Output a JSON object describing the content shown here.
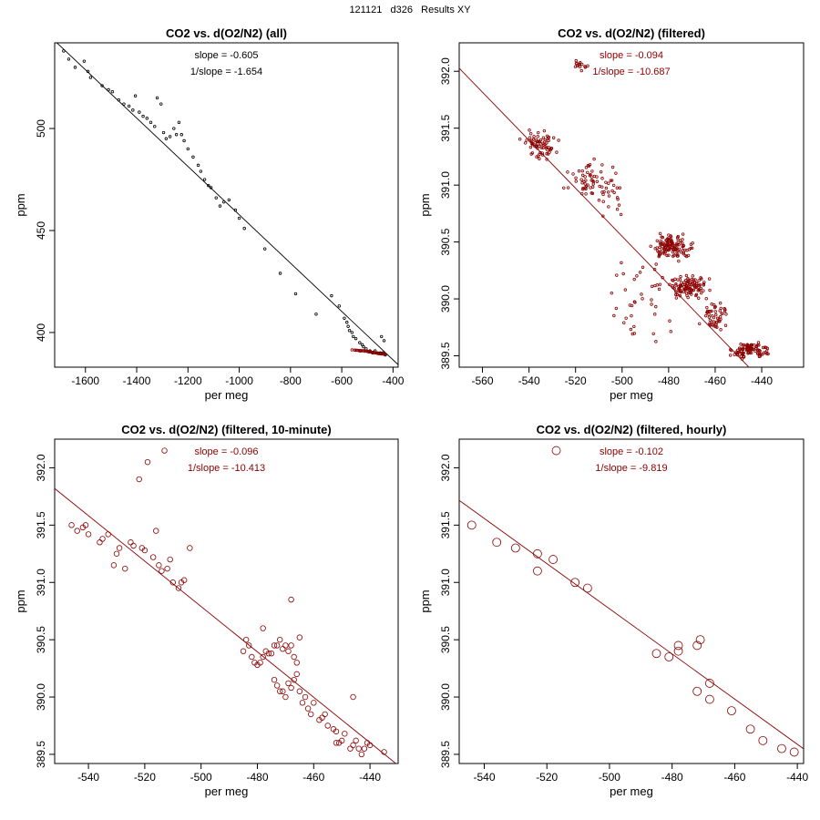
{
  "page_title": "121121   d326   Results XY",
  "colors": {
    "all_points": "#000000",
    "filtered": "#8b0000",
    "fit_all": "#000000",
    "fit_filtered": "#8b0000"
  },
  "chart_data": [
    {
      "type": "scatter",
      "title": "CO2 vs. d(O2/N2) (all)",
      "xlabel": "per meg",
      "ylabel": "ppm",
      "xlim": [
        -1720,
        -380
      ],
      "ylim": [
        383,
        542
      ],
      "xticks": [
        -1600,
        -1400,
        -1200,
        -1000,
        -800,
        -600,
        -400
      ],
      "xtick_labels": [
        "-1600",
        "-1400",
        "-1200",
        "-1000",
        "-800",
        "-600",
        "-400"
      ],
      "yticks": [
        400,
        450,
        500
      ],
      "ytick_labels": [
        "400",
        "450",
        "500"
      ],
      "annotations": [
        "slope = -0.605",
        "1/slope = -1.654"
      ],
      "annotation_color": "#000000",
      "fit_line": {
        "slope": -0.1185,
        "intercept": 339.2,
        "color": "#000000"
      },
      "series": [
        {
          "name": "all",
          "color": "#000000",
          "marker_r": 1.3,
          "points": [
            [
              -1685,
              538
            ],
            [
              -1665,
              534
            ],
            [
              -1640,
              530
            ],
            [
              -1605,
              533
            ],
            [
              -1590,
              528
            ],
            [
              -1580,
              525
            ],
            [
              -1535,
              521
            ],
            [
              -1510,
              519
            ],
            [
              -1495,
              518
            ],
            [
              -1470,
              514
            ],
            [
              -1450,
              512
            ],
            [
              -1430,
              511
            ],
            [
              -1415,
              509
            ],
            [
              -1405,
              516
            ],
            [
              -1390,
              508
            ],
            [
              -1375,
              506
            ],
            [
              -1360,
              505
            ],
            [
              -1345,
              503
            ],
            [
              -1330,
              501
            ],
            [
              -1320,
              515
            ],
            [
              -1305,
              512
            ],
            [
              -1295,
              498
            ],
            [
              -1285,
              495
            ],
            [
              -1270,
              496
            ],
            [
              -1255,
              500
            ],
            [
              -1245,
              497
            ],
            [
              -1235,
              503
            ],
            [
              -1225,
              497
            ],
            [
              -1215,
              494
            ],
            [
              -1200,
              490
            ],
            [
              -1180,
              486
            ],
            [
              -1160,
              482
            ],
            [
              -1150,
              479
            ],
            [
              -1135,
              475
            ],
            [
              -1120,
              472
            ],
            [
              -1110,
              471
            ],
            [
              -1090,
              466
            ],
            [
              -1075,
              462
            ],
            [
              -1060,
              464
            ],
            [
              -1040,
              465
            ],
            [
              -1015,
              460
            ],
            [
              -1000,
              456
            ],
            [
              -980,
              451
            ],
            [
              -900,
              441
            ],
            [
              -840,
              429
            ],
            [
              -780,
              419
            ],
            [
              -700,
              409
            ],
            [
              -640,
              418
            ],
            [
              -610,
              413
            ],
            [
              -590,
              407
            ],
            [
              -580,
              405
            ],
            [
              -575,
              403
            ],
            [
              -570,
              401
            ],
            [
              -560,
              400
            ],
            [
              -555,
              398
            ],
            [
              -545,
              397
            ],
            [
              -530,
              395
            ],
            [
              -520,
              394
            ],
            [
              -515,
              393
            ],
            [
              -505,
              392
            ],
            [
              -490,
              391
            ],
            [
              -480,
              390
            ],
            [
              -470,
              391
            ],
            [
              -460,
              390
            ],
            [
              -450,
              390
            ],
            [
              -440,
              390
            ],
            [
              -430,
              389
            ],
            [
              -445,
              398
            ],
            [
              -435,
              396
            ]
          ]
        },
        {
          "name": "filtered",
          "color": "#8b0000",
          "marker_r": 1.3,
          "points": [
            [
              -560,
              391.5
            ],
            [
              -550,
              391.4
            ],
            [
              -545,
              391.3
            ],
            [
              -540,
              391.3
            ],
            [
              -535,
              391.2
            ],
            [
              -530,
              391.1
            ],
            [
              -528,
              390.9
            ],
            [
              -525,
              391.2
            ],
            [
              -520,
              391.0
            ],
            [
              -515,
              391.1
            ],
            [
              -510,
              390.8
            ],
            [
              -505,
              391.0
            ],
            [
              -500,
              390.7
            ],
            [
              -497,
              390.6
            ],
            [
              -494,
              390.5
            ],
            [
              -490,
              390.4
            ],
            [
              -488,
              390.5
            ],
            [
              -485,
              390.4
            ],
            [
              -482,
              390.3
            ],
            [
              -480,
              390.2
            ],
            [
              -478,
              390.3
            ],
            [
              -475,
              390.2
            ],
            [
              -472,
              390.1
            ],
            [
              -470,
              390.1
            ],
            [
              -467,
              390.0
            ],
            [
              -464,
              389.9
            ],
            [
              -461,
              389.8
            ],
            [
              -458,
              389.7
            ],
            [
              -455,
              389.7
            ],
            [
              -452,
              389.6
            ],
            [
              -449,
              389.6
            ],
            [
              -446,
              389.5
            ],
            [
              -443,
              389.5
            ],
            [
              -440,
              389.5
            ],
            [
              -438,
              389.5
            ],
            [
              -435,
              389.4
            ],
            [
              -432,
              389.4
            ]
          ]
        }
      ]
    },
    {
      "type": "scatter",
      "title": "CO2 vs. d(O2/N2) (filtered)",
      "xlabel": "per meg",
      "ylabel": "ppm",
      "xlim": [
        -570,
        -422
      ],
      "ylim": [
        389.4,
        392.25
      ],
      "xticks": [
        -560,
        -540,
        -520,
        -500,
        -480,
        -460,
        -440
      ],
      "xtick_labels": [
        "-560",
        "-540",
        "-520",
        "-500",
        "-480",
        "-460",
        "-440"
      ],
      "yticks": [
        389.5,
        390.0,
        390.5,
        391.0,
        391.5,
        392.0
      ],
      "ytick_labels": [
        "389.5",
        "390.0",
        "390.5",
        "391.0",
        "391.5",
        "392.0"
      ],
      "annotations": [
        "slope = -0.094",
        "1/slope = -10.687"
      ],
      "annotation_color": "#8b0000",
      "fit_line": {
        "slope": -0.0211,
        "intercept": 380.0,
        "color": "#8b0000"
      },
      "series": [
        {
          "name": "filtered",
          "color": "#8b0000",
          "marker_r": 1.3,
          "points": "generated"
        }
      ]
    },
    {
      "type": "scatter",
      "title": "CO2 vs. d(O2/N2) (filtered, 10-minute)",
      "xlabel": "per meg",
      "ylabel": "ppm",
      "xlim": [
        -552,
        -430
      ],
      "ylim": [
        389.42,
        392.25
      ],
      "xticks": [
        -540,
        -520,
        -500,
        -480,
        -460,
        -440
      ],
      "xtick_labels": [
        "-540",
        "-520",
        "-500",
        "-480",
        "-460",
        "-440"
      ],
      "yticks": [
        389.5,
        390.0,
        390.5,
        391.0,
        391.5,
        392.0
      ],
      "ytick_labels": [
        "389.5",
        "390.0",
        "390.5",
        "391.0",
        "391.5",
        "392.0"
      ],
      "annotations": [
        "slope = -0.096",
        "1/slope = -10.413"
      ],
      "annotation_color": "#8b0000",
      "fit_line": {
        "slope": -0.0198,
        "intercept": 380.89,
        "color": "#8b0000"
      },
      "series": [
        {
          "name": "10-minute",
          "color": "#8b0000",
          "marker_r": 2.8,
          "points": [
            [
              -546,
              391.5
            ],
            [
              -544,
              391.45
            ],
            [
              -542,
              391.48
            ],
            [
              -541,
              391.5
            ],
            [
              -540,
              391.42
            ],
            [
              -536,
              391.35
            ],
            [
              -535,
              391.38
            ],
            [
              -533,
              391.42
            ],
            [
              -531,
              391.15
            ],
            [
              -530,
              391.25
            ],
            [
              -529,
              391.3
            ],
            [
              -527,
              391.12
            ],
            [
              -525,
              391.35
            ],
            [
              -524,
              391.32
            ],
            [
              -521,
              391.3
            ],
            [
              -520,
              391.28
            ],
            [
              -517,
              391.22
            ],
            [
              -515,
              391.15
            ],
            [
              -514,
              391.1
            ],
            [
              -512,
              391.12
            ],
            [
              -510,
              391.0
            ],
            [
              -508,
              390.95
            ],
            [
              -507,
              391.0
            ],
            [
              -506,
              391.02
            ],
            [
              -504,
              391.3
            ],
            [
              -522,
              391.9
            ],
            [
              -519,
              392.05
            ],
            [
              -516,
              391.45
            ],
            [
              -513,
              392.15
            ],
            [
              -511,
              391.2
            ],
            [
              -485,
              390.4
            ],
            [
              -484,
              390.5
            ],
            [
              -483,
              390.45
            ],
            [
              -482,
              390.35
            ],
            [
              -481,
              390.3
            ],
            [
              -480,
              390.28
            ],
            [
              -479,
              390.3
            ],
            [
              -478,
              390.35
            ],
            [
              -477,
              390.4
            ],
            [
              -476,
              390.38
            ],
            [
              -475,
              390.38
            ],
            [
              -474,
              390.45
            ],
            [
              -473,
              390.45
            ],
            [
              -472,
              390.5
            ],
            [
              -471,
              390.42
            ],
            [
              -470,
              390.45
            ],
            [
              -469,
              390.4
            ],
            [
              -468,
              390.45
            ],
            [
              -467,
              390.35
            ],
            [
              -466,
              390.3
            ],
            [
              -478,
              390.6
            ],
            [
              -468,
              390.85
            ],
            [
              -465,
              390.52
            ],
            [
              -474,
              390.15
            ],
            [
              -473,
              390.1
            ],
            [
              -472,
              390.05
            ],
            [
              -471,
              390.05
            ],
            [
              -470,
              390.0
            ],
            [
              -469,
              390.12
            ],
            [
              -468,
              390.08
            ],
            [
              -467,
              390.15
            ],
            [
              -466,
              390.2
            ],
            [
              -465,
              390.05
            ],
            [
              -464,
              389.95
            ],
            [
              -463,
              390.0
            ],
            [
              -462,
              389.9
            ],
            [
              -461,
              389.85
            ],
            [
              -460,
              389.95
            ],
            [
              -458,
              389.8
            ],
            [
              -457,
              389.82
            ],
            [
              -456,
              389.85
            ],
            [
              -455,
              389.75
            ],
            [
              -453,
              389.72
            ],
            [
              -452,
              389.7
            ],
            [
              -451,
              389.6
            ],
            [
              -450,
              389.62
            ],
            [
              -449,
              389.68
            ],
            [
              -447,
              389.55
            ],
            [
              -446,
              389.58
            ],
            [
              -445,
              389.62
            ],
            [
              -444,
              389.55
            ],
            [
              -443,
              389.5
            ],
            [
              -442,
              389.55
            ],
            [
              -441,
              389.6
            ],
            [
              -440,
              389.58
            ],
            [
              -435,
              389.52
            ],
            [
              -446,
              390.0
            ],
            [
              -452,
              389.6
            ]
          ]
        }
      ]
    },
    {
      "type": "scatter",
      "title": "CO2 vs. d(O2/N2) (filtered, hourly)",
      "xlabel": "per meg",
      "ylabel": "ppm",
      "xlim": [
        -548,
        -438
      ],
      "ylim": [
        389.42,
        392.25
      ],
      "xticks": [
        -540,
        -520,
        -500,
        -480,
        -460,
        -440
      ],
      "xtick_labels": [
        "-540",
        "-520",
        "-500",
        "-480",
        "-460",
        "-440"
      ],
      "yticks": [
        389.5,
        390.0,
        390.5,
        391.0,
        391.5,
        392.0
      ],
      "ytick_labels": [
        "389.5",
        "390.0",
        "390.5",
        "391.0",
        "391.5",
        "392.0"
      ],
      "annotations": [
        "slope = -0.102",
        "1/slope = -9.819"
      ],
      "annotation_color": "#8b0000",
      "fit_line": {
        "slope": -0.0197,
        "intercept": 380.92,
        "color": "#8b0000"
      },
      "series": [
        {
          "name": "hourly",
          "color": "#8b0000",
          "marker_r": 4.5,
          "points": [
            [
              -544,
              391.5
            ],
            [
              -536,
              391.35
            ],
            [
              -530,
              391.3
            ],
            [
              -523,
              391.25
            ],
            [
              -523,
              391.1
            ],
            [
              -518,
              391.2
            ],
            [
              -517,
              392.15
            ],
            [
              -511,
              391.0
            ],
            [
              -507,
              390.95
            ],
            [
              -485,
              390.38
            ],
            [
              -481,
              390.35
            ],
            [
              -478,
              390.4
            ],
            [
              -478,
              390.45
            ],
            [
              -472,
              390.45
            ],
            [
              -471,
              390.5
            ],
            [
              -472,
              390.05
            ],
            [
              -468,
              390.12
            ],
            [
              -468,
              389.98
            ],
            [
              -461,
              389.88
            ],
            [
              -455,
              389.72
            ],
            [
              -451,
              389.62
            ],
            [
              -445,
              389.55
            ],
            [
              -441,
              389.52
            ]
          ]
        }
      ]
    }
  ]
}
